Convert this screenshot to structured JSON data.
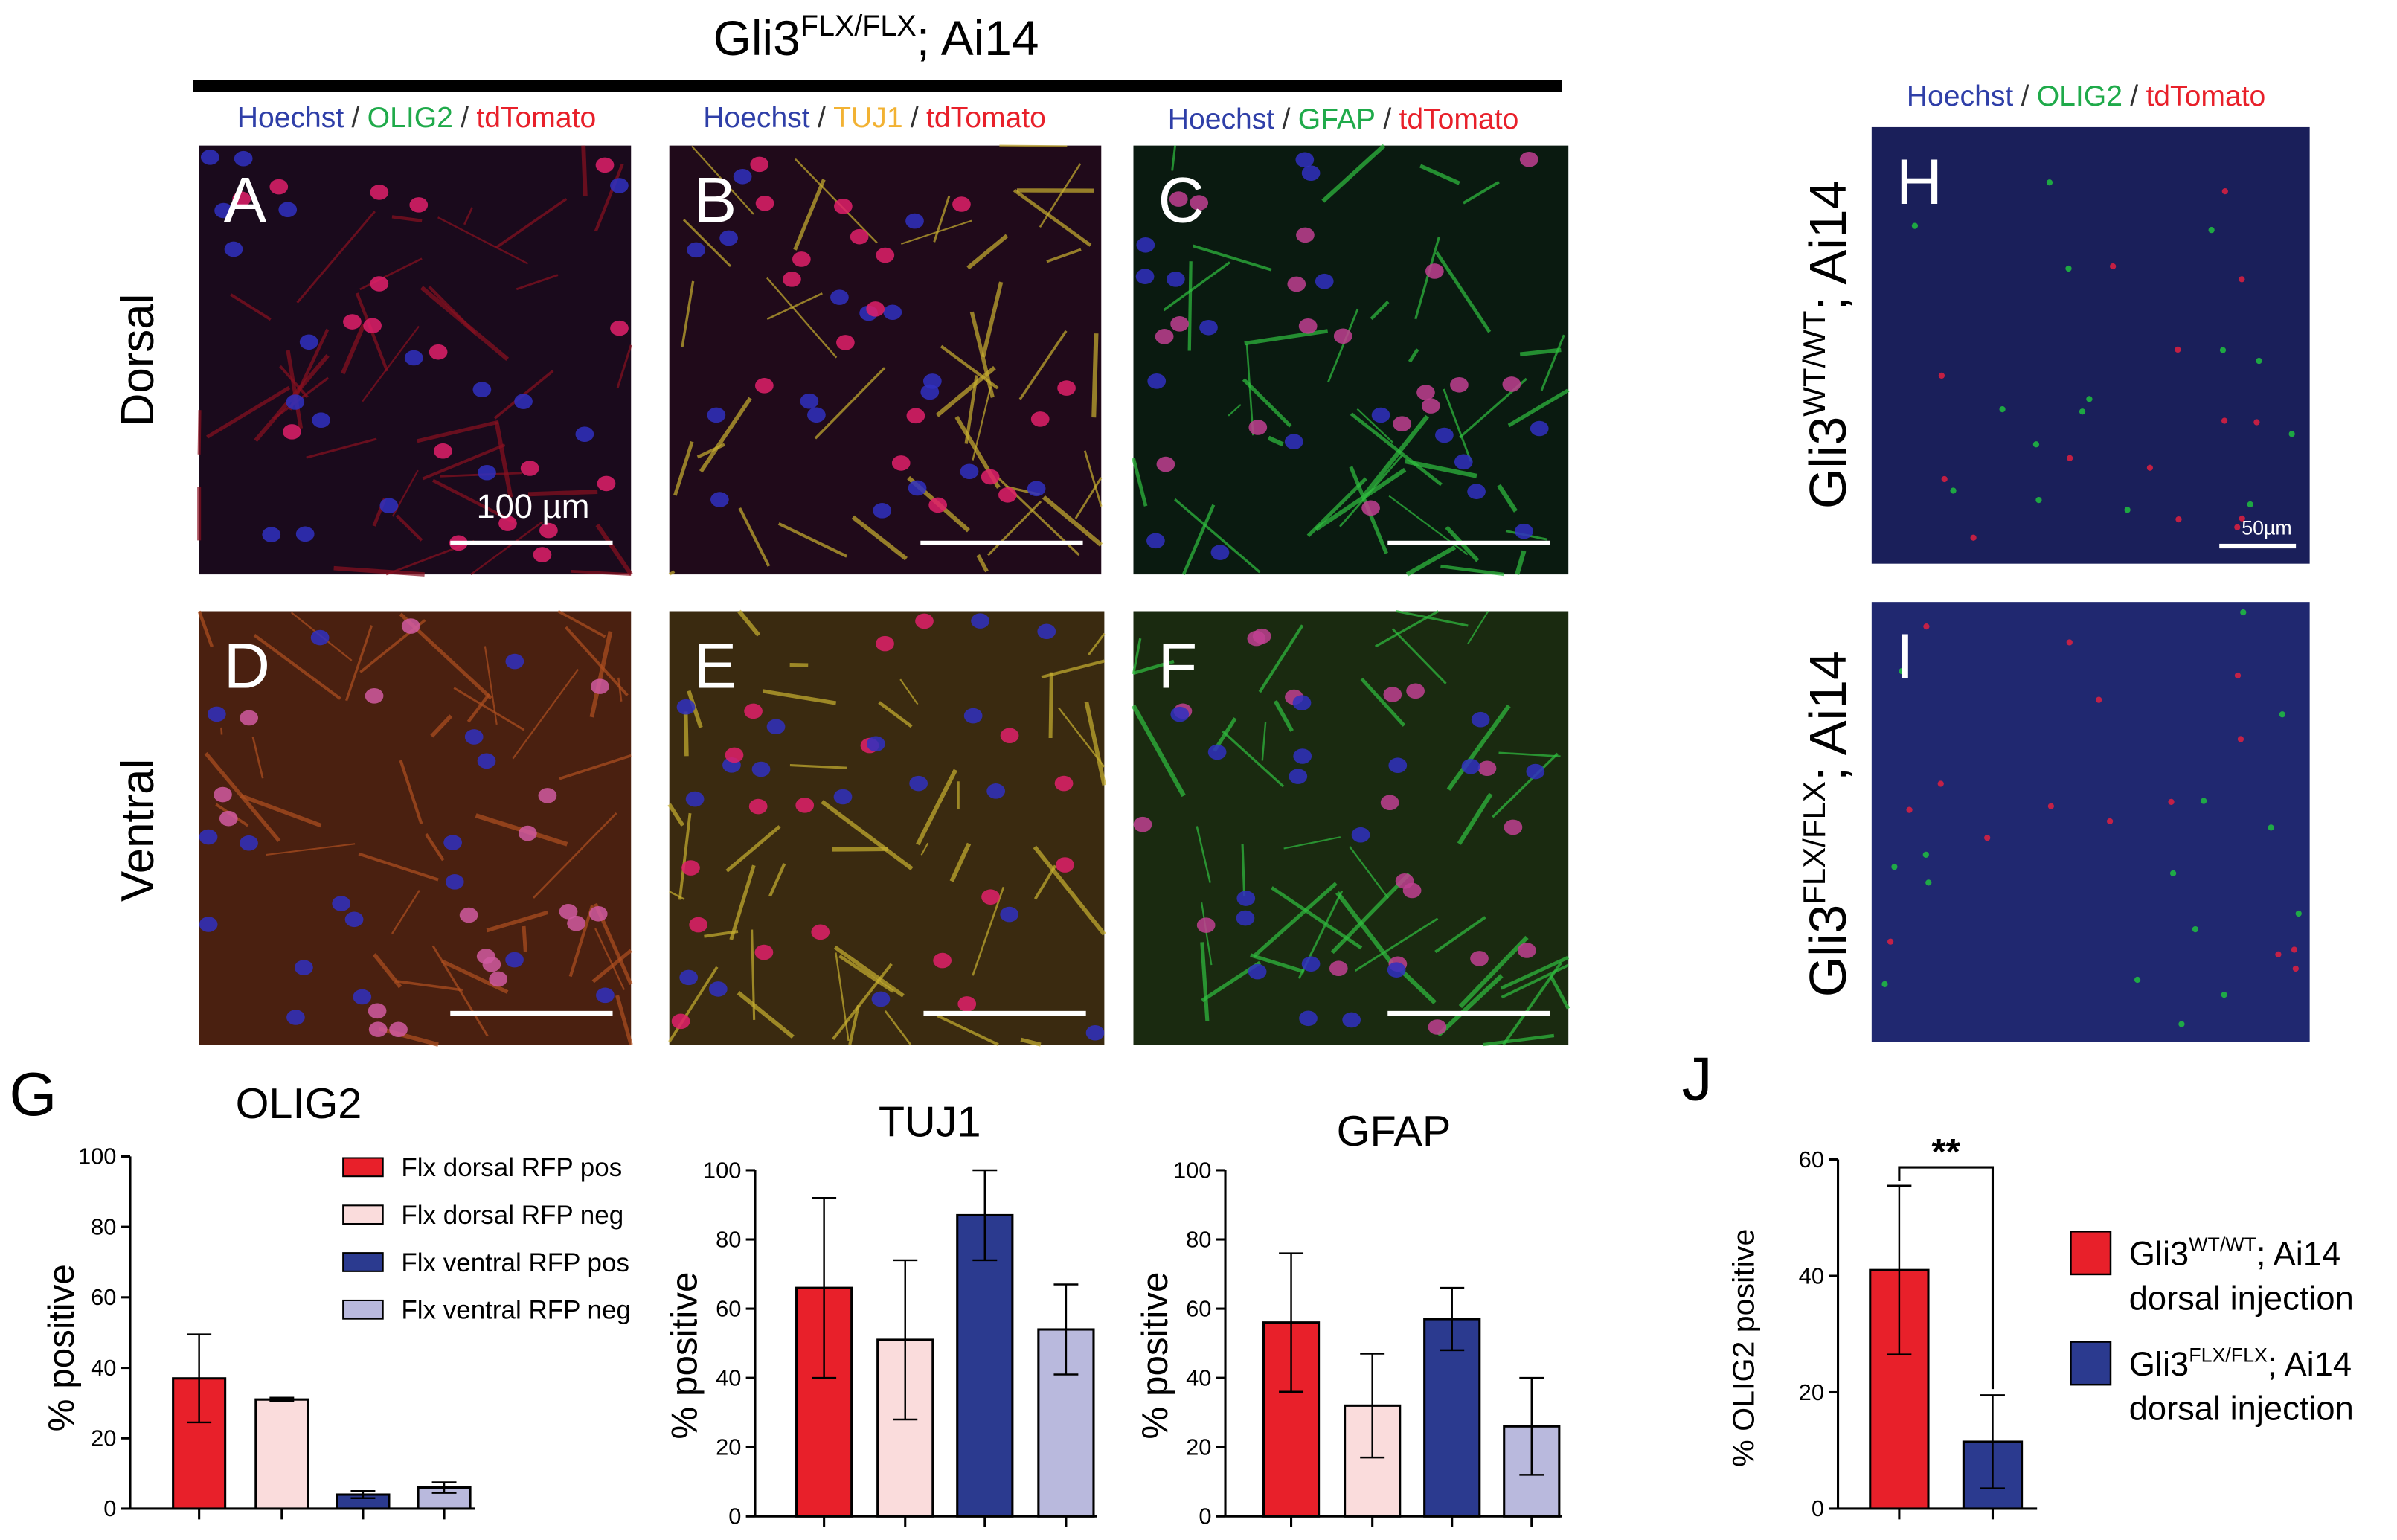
{
  "figure": {
    "title": {
      "base": "Gli3",
      "sup": "FLX/FLX",
      "rest": "; Ai14"
    },
    "stain_labels": [
      [
        {
          "text": "Hoechst",
          "color": "#2f3fa8"
        },
        {
          "text": "/",
          "color": "#333333"
        },
        {
          "text": "OLIG2",
          "color": "#1faa4a"
        },
        {
          "text": "/",
          "color": "#333333"
        },
        {
          "text": "tdTomato",
          "color": "#e8202a"
        }
      ],
      [
        {
          "text": "Hoechst",
          "color": "#2f3fa8"
        },
        {
          "text": "/",
          "color": "#333333"
        },
        {
          "text": "TUJ1",
          "color": "#f2b233"
        },
        {
          "text": "/",
          "color": "#333333"
        },
        {
          "text": "tdTomato",
          "color": "#e8202a"
        }
      ],
      [
        {
          "text": "Hoechst",
          "color": "#2f3fa8"
        },
        {
          "text": "/",
          "color": "#333333"
        },
        {
          "text": "GFAP",
          "color": "#1faa4a"
        },
        {
          "text": "/",
          "color": "#333333"
        },
        {
          "text": "tdTomato",
          "color": "#e8202a"
        }
      ],
      [
        {
          "text": "Hoechst",
          "color": "#2f3fa8"
        },
        {
          "text": "/",
          "color": "#333333"
        },
        {
          "text": "OLIG2",
          "color": "#1faa4a"
        },
        {
          "text": "/",
          "color": "#333333"
        },
        {
          "text": "tdTomato",
          "color": "#e8202a"
        }
      ]
    ],
    "rows": [
      "Dorsal",
      "Ventral"
    ],
    "panels": [
      "A",
      "B",
      "C",
      "D",
      "E",
      "F",
      "H",
      "I"
    ],
    "scale_labels": [
      "100 µm",
      "50µm"
    ],
    "genotypes": [
      {
        "base": "Gli3",
        "sup": "WT/WT",
        "rest": "; Ai14"
      },
      {
        "base": "Gli3",
        "sup": "FLX/FLX",
        "rest": "; Ai14"
      }
    ],
    "chart_letters": [
      "G",
      "J"
    ]
  },
  "chart_data": [
    {
      "type": "bar",
      "title": "OLIG2",
      "y_label": "% positive",
      "categories": [
        null,
        null,
        null,
        null
      ],
      "values": [
        37,
        31,
        4,
        6
      ],
      "errors": [
        12.5,
        0.5,
        1,
        1.5
      ],
      "colors": [
        "#e8202a",
        "#fadcdc",
        "#2b3a8f",
        "#b9b9dd"
      ],
      "legend": [
        "Flx dorsal RFP pos",
        "Flx dorsal RFP neg",
        "Flx ventral RFP pos",
        "Flx ventral RFP neg"
      ],
      "ylim": [
        0,
        100
      ],
      "yticks": [
        0,
        20,
        40,
        60,
        80,
        100
      ]
    },
    {
      "type": "bar",
      "title": "TUJ1",
      "y_label": "% positive",
      "categories": [
        null,
        null,
        null,
        null
      ],
      "values": [
        66,
        51,
        87,
        54
      ],
      "errors": [
        26,
        23,
        13,
        13
      ],
      "colors": [
        "#e8202a",
        "#fadcdc",
        "#2b3a8f",
        "#b9b9dd"
      ],
      "ylim": [
        0,
        100
      ],
      "yticks": [
        0,
        20,
        40,
        60,
        80,
        100
      ]
    },
    {
      "type": "bar",
      "title": "GFAP",
      "y_label": "% positive",
      "categories": [
        null,
        null,
        null,
        null
      ],
      "values": [
        56,
        32,
        57,
        26
      ],
      "errors": [
        20,
        15,
        9,
        14
      ],
      "colors": [
        "#e8202a",
        "#fadcdc",
        "#2b3a8f",
        "#b9b9dd"
      ],
      "ylim": [
        0,
        100
      ],
      "yticks": [
        0,
        20,
        40,
        60,
        80,
        100
      ]
    },
    {
      "type": "bar",
      "y_label": "% OLIG2 positive",
      "categories": [
        null,
        null
      ],
      "values": [
        41,
        11.5
      ],
      "errors": [
        14.5,
        8
      ],
      "colors": [
        "#e8202a",
        "#2b3a8f"
      ],
      "legend": [
        {
          "base": "Gli3",
          "sup": "WT/WT",
          "rest": "; Ai14",
          "line2": "dorsal injection"
        },
        {
          "base": "Gli3",
          "sup": "FLX/FLX",
          "rest": "; Ai14",
          "line2": "dorsal injection"
        }
      ],
      "annotation": "**",
      "ylim": [
        0,
        60
      ],
      "yticks": [
        0,
        20,
        40,
        60
      ]
    }
  ]
}
